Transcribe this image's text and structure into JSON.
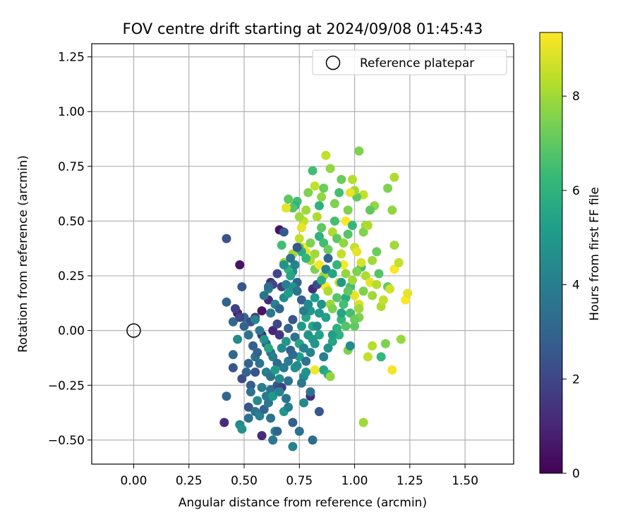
{
  "chart_data": {
    "type": "scatter",
    "title": "FOV centre drift starting at 2024/09/08 01:45:43",
    "xlabel": "Angular distance from reference (arcmin)",
    "ylabel": "Rotation from reference (arcmin)",
    "xlim": [
      -0.19,
      1.72
    ],
    "ylim": [
      -0.61,
      1.31
    ],
    "x_ticks": [
      0.0,
      0.25,
      0.5,
      0.75,
      1.0,
      1.25,
      1.5
    ],
    "x_tick_labels": [
      "0.00",
      "0.25",
      "0.50",
      "0.75",
      "1.00",
      "1.25",
      "1.50"
    ],
    "y_ticks": [
      -0.5,
      -0.25,
      0.0,
      0.25,
      0.5,
      0.75,
      1.0,
      1.25
    ],
    "y_tick_labels": [
      "−0.50",
      "−0.25",
      "0.00",
      "0.25",
      "0.50",
      "0.75",
      "1.00",
      "1.25"
    ],
    "grid": true,
    "legend": {
      "placement": "upper right",
      "entries": [
        "Reference platepar"
      ]
    },
    "reference_point": {
      "name": "Reference platepar",
      "x": 0.0,
      "y": 0.0
    },
    "colorbar": {
      "label": "Hours from first FF file",
      "colormap": "viridis",
      "range": [
        0,
        9.35
      ],
      "ticks": [
        0,
        2,
        4,
        6,
        8
      ],
      "tick_labels": [
        "0",
        "2",
        "4",
        "6",
        "8"
      ]
    },
    "colormap_stops": [
      "#440154",
      "#482878",
      "#3e4989",
      "#31688e",
      "#26828e",
      "#1f9e89",
      "#35b779",
      "#6ece58",
      "#b5de2b",
      "#fde725"
    ],
    "points": [
      [
        0.42,
        0.42,
        2.4
      ],
      [
        0.48,
        0.3,
        0.5
      ],
      [
        0.49,
        0.2,
        2.5
      ],
      [
        0.42,
        0.13,
        3.0
      ],
      [
        0.45,
        0.04,
        3.1
      ],
      [
        0.47,
        0.08,
        0.8
      ],
      [
        0.5,
        0.06,
        3.2
      ],
      [
        0.53,
        0.04,
        2.2
      ],
      [
        0.55,
        0.06,
        1.5
      ],
      [
        0.58,
        0.09,
        0.5
      ],
      [
        0.61,
        0.14,
        1.0
      ],
      [
        0.62,
        0.22,
        1.2
      ],
      [
        0.63,
        0.21,
        2.0
      ],
      [
        0.61,
        0.19,
        4.5
      ],
      [
        0.66,
        0.46,
        0.5
      ],
      [
        0.68,
        0.45,
        2.6
      ],
      [
        0.67,
        0.2,
        1.8
      ],
      [
        0.69,
        0.21,
        4.0
      ],
      [
        0.72,
        0.27,
        4.5
      ],
      [
        0.74,
        0.22,
        3.0
      ],
      [
        0.63,
        0.0,
        1.0
      ],
      [
        0.65,
        0.03,
        2.0
      ],
      [
        0.66,
        -0.02,
        1.5
      ],
      [
        0.7,
        0.01,
        3.0
      ],
      [
        0.72,
        0.05,
        2.5
      ],
      [
        0.58,
        -0.02,
        1.2
      ],
      [
        0.6,
        -0.06,
        2.8
      ],
      [
        0.62,
        -0.1,
        3.3
      ],
      [
        0.55,
        -0.12,
        3.5
      ],
      [
        0.52,
        -0.15,
        3.0
      ],
      [
        0.49,
        -0.22,
        2.2
      ],
      [
        0.51,
        -0.19,
        3.0
      ],
      [
        0.45,
        -0.11,
        3.2
      ],
      [
        0.45,
        -0.17,
        2.5
      ],
      [
        0.47,
        -0.04,
        4.5
      ],
      [
        0.55,
        -0.19,
        2.5
      ],
      [
        0.57,
        -0.15,
        3.5
      ],
      [
        0.53,
        -0.25,
        2.8
      ],
      [
        0.58,
        -0.26,
        4.0
      ],
      [
        0.6,
        -0.3,
        3.8
      ],
      [
        0.62,
        -0.27,
        3.5
      ],
      [
        0.65,
        -0.25,
        2.5
      ],
      [
        0.67,
        -0.26,
        1.8
      ],
      [
        0.7,
        -0.23,
        3.5
      ],
      [
        0.42,
        -0.3,
        3.0
      ],
      [
        0.41,
        -0.42,
        1.2
      ],
      [
        0.48,
        -0.43,
        4.5
      ],
      [
        0.49,
        -0.45,
        4.8
      ],
      [
        0.52,
        -0.35,
        2.5
      ],
      [
        0.52,
        -0.4,
        3.5
      ],
      [
        0.55,
        -0.37,
        3.5
      ],
      [
        0.57,
        -0.39,
        4.2
      ],
      [
        0.58,
        -0.48,
        1.2
      ],
      [
        0.62,
        -0.4,
        3.5
      ],
      [
        0.63,
        -0.5,
        3.8
      ],
      [
        0.64,
        -0.46,
        4.5
      ],
      [
        0.65,
        -0.46,
        3.0
      ],
      [
        0.68,
        -0.37,
        5.0
      ],
      [
        0.7,
        -0.35,
        4.0
      ],
      [
        0.72,
        -0.53,
        4.2
      ],
      [
        0.75,
        -0.46,
        3.5
      ],
      [
        0.77,
        -0.33,
        4.5
      ],
      [
        0.81,
        -0.5,
        3.3
      ],
      [
        0.84,
        -0.37,
        2.5
      ],
      [
        0.8,
        -0.3,
        1.2
      ],
      [
        0.8,
        -0.28,
        3.5
      ],
      [
        0.77,
        -0.21,
        4.5
      ],
      [
        0.73,
        -0.17,
        4.8
      ],
      [
        0.75,
        -0.12,
        5.2
      ],
      [
        0.78,
        -0.14,
        3.5
      ],
      [
        0.8,
        -0.1,
        4.2
      ],
      [
        0.82,
        -0.06,
        5.0
      ],
      [
        0.84,
        -0.02,
        5.3
      ],
      [
        0.86,
        -0.18,
        5.5
      ],
      [
        0.88,
        -0.2,
        5.8
      ],
      [
        0.89,
        -0.21,
        7.8
      ],
      [
        0.82,
        -0.18,
        9.2
      ],
      [
        0.76,
        0.02,
        5.0
      ],
      [
        0.78,
        0.06,
        5.5
      ],
      [
        0.8,
        0.09,
        5.0
      ],
      [
        0.82,
        0.15,
        5.2
      ],
      [
        0.85,
        0.12,
        4.8
      ],
      [
        0.87,
        0.06,
        5.3
      ],
      [
        0.9,
        -0.05,
        5.5
      ],
      [
        0.93,
        -0.02,
        6.0
      ],
      [
        0.94,
        0.05,
        6.2
      ],
      [
        0.96,
        0.02,
        6.8
      ],
      [
        0.97,
        -0.09,
        7.5
      ],
      [
        0.98,
        -0.07,
        4.5
      ],
      [
        1.0,
        0.02,
        7.0
      ],
      [
        1.02,
        0.06,
        7.5
      ],
      [
        1.04,
        -0.42,
        8.0
      ],
      [
        1.06,
        -0.12,
        8.5
      ],
      [
        1.08,
        -0.07,
        8.3
      ],
      [
        1.12,
        -0.12,
        6.2
      ],
      [
        1.14,
        -0.06,
        7.5
      ],
      [
        1.17,
        -0.18,
        9.2
      ],
      [
        1.21,
        -0.04,
        7.9
      ],
      [
        0.72,
        0.35,
        8.0
      ],
      [
        0.75,
        0.42,
        8.5
      ],
      [
        0.77,
        0.38,
        9.3
      ],
      [
        0.78,
        0.36,
        9.0
      ],
      [
        0.8,
        0.32,
        8.2
      ],
      [
        0.82,
        0.28,
        7.5
      ],
      [
        0.84,
        0.3,
        9.2
      ],
      [
        0.86,
        0.25,
        8.0
      ],
      [
        0.87,
        0.2,
        9.3
      ],
      [
        0.88,
        0.18,
        8.2
      ],
      [
        0.89,
        0.12,
        8.0
      ],
      [
        0.9,
        0.1,
        7.5
      ],
      [
        0.92,
        0.15,
        6.8
      ],
      [
        0.93,
        0.22,
        8.5
      ],
      [
        0.95,
        0.3,
        9.3
      ],
      [
        0.96,
        0.26,
        7.8
      ],
      [
        0.98,
        0.2,
        6.5
      ],
      [
        1.0,
        0.16,
        9.0
      ],
      [
        1.02,
        0.12,
        8.8
      ],
      [
        1.04,
        0.18,
        7.5
      ],
      [
        1.05,
        0.25,
        8.2
      ],
      [
        1.07,
        0.22,
        9.0
      ],
      [
        1.08,
        0.16,
        8.0
      ],
      [
        1.1,
        0.21,
        8.3
      ],
      [
        1.11,
        0.26,
        6.8
      ],
      [
        1.12,
        0.11,
        8.2
      ],
      [
        1.13,
        0.14,
        8.5
      ],
      [
        1.15,
        0.2,
        7.0
      ],
      [
        1.16,
        0.19,
        8.7
      ],
      [
        1.18,
        0.28,
        9.3
      ],
      [
        1.18,
        0.39,
        8.0
      ],
      [
        1.2,
        0.31,
        8.5
      ],
      [
        1.23,
        0.14,
        9.3
      ],
      [
        1.24,
        0.17,
        9.0
      ],
      [
        1.15,
        0.65,
        7.5
      ],
      [
        1.17,
        0.55,
        7.8
      ],
      [
        1.18,
        0.7,
        8.2
      ],
      [
        1.09,
        0.57,
        7.8
      ],
      [
        1.07,
        0.55,
        7.0
      ],
      [
        1.05,
        0.48,
        8.0
      ],
      [
        1.04,
        0.62,
        8.5
      ],
      [
        1.02,
        0.82,
        7.5
      ],
      [
        1.01,
        0.61,
        7.0
      ],
      [
        1.0,
        0.64,
        8.0
      ],
      [
        0.99,
        0.69,
        8.3
      ],
      [
        0.98,
        0.63,
        9.0
      ],
      [
        0.97,
        0.55,
        7.5
      ],
      [
        0.96,
        0.5,
        9.3
      ],
      [
        0.94,
        0.69,
        7.2
      ],
      [
        0.93,
        0.63,
        6.5
      ],
      [
        0.91,
        0.58,
        7.5
      ],
      [
        0.89,
        0.74,
        7.8
      ],
      [
        0.87,
        0.8,
        8.5
      ],
      [
        0.86,
        0.65,
        7.2
      ],
      [
        0.85,
        0.61,
        7.8
      ],
      [
        0.84,
        0.57,
        6.0
      ],
      [
        0.83,
        0.52,
        8.2
      ],
      [
        0.82,
        0.66,
        8.5
      ],
      [
        0.81,
        0.73,
        6.5
      ],
      [
        0.79,
        0.63,
        7.5
      ],
      [
        0.78,
        0.55,
        8.0
      ],
      [
        0.77,
        0.5,
        8.5
      ],
      [
        0.76,
        0.47,
        9.0
      ],
      [
        0.75,
        0.52,
        8.0
      ],
      [
        0.74,
        0.59,
        6.5
      ],
      [
        0.73,
        0.57,
        6.0
      ],
      [
        0.72,
        0.56,
        6.8
      ],
      [
        0.7,
        0.6,
        7.0
      ],
      [
        0.69,
        0.56,
        9.0
      ],
      [
        0.68,
        0.31,
        8.0
      ],
      [
        0.67,
        0.39,
        6.5
      ],
      [
        0.7,
        0.28,
        6.0
      ],
      [
        0.71,
        0.25,
        5.5
      ],
      [
        0.73,
        0.3,
        4.2
      ],
      [
        0.75,
        0.38,
        7.0
      ],
      [
        0.76,
        0.36,
        5.8
      ],
      [
        0.78,
        0.33,
        6.2
      ],
      [
        0.8,
        0.4,
        7.5
      ],
      [
        0.82,
        0.35,
        8.0
      ],
      [
        0.84,
        0.43,
        6.0
      ],
      [
        0.85,
        0.47,
        7.0
      ],
      [
        0.86,
        0.4,
        6.5
      ],
      [
        0.88,
        0.37,
        7.2
      ],
      [
        0.9,
        0.45,
        8.2
      ],
      [
        0.91,
        0.5,
        6.5
      ],
      [
        0.92,
        0.42,
        7.0
      ],
      [
        0.94,
        0.35,
        8.5
      ],
      [
        0.95,
        0.4,
        7.8
      ],
      [
        0.97,
        0.44,
        6.8
      ],
      [
        0.99,
        0.48,
        6.2
      ],
      [
        1.0,
        0.38,
        8.5
      ],
      [
        1.01,
        0.36,
        9.0
      ],
      [
        1.03,
        0.29,
        6.5
      ],
      [
        1.04,
        0.45,
        7.5
      ],
      [
        1.06,
        0.48,
        8.2
      ],
      [
        1.08,
        0.32,
        8.0
      ],
      [
        1.1,
        0.36,
        7.2
      ],
      [
        0.62,
        0.08,
        3.8
      ],
      [
        0.64,
        0.12,
        4.2
      ],
      [
        0.66,
        0.1,
        3.0
      ],
      [
        0.68,
        0.15,
        4.5
      ],
      [
        0.7,
        0.17,
        5.2
      ],
      [
        0.72,
        0.2,
        4.8
      ],
      [
        0.74,
        0.18,
        3.5
      ],
      [
        0.76,
        0.14,
        2.8
      ],
      [
        0.77,
        0.09,
        4.0
      ],
      [
        0.79,
        0.12,
        4.5
      ],
      [
        0.81,
        0.19,
        1.2
      ],
      [
        0.83,
        0.21,
        2.2
      ],
      [
        0.85,
        0.23,
        5.8
      ],
      [
        0.87,
        0.28,
        4.2
      ],
      [
        0.88,
        0.33,
        3.0
      ],
      [
        0.9,
        0.26,
        5.5
      ],
      [
        0.92,
        0.3,
        6.2
      ],
      [
        0.94,
        0.22,
        5.0
      ],
      [
        0.96,
        0.15,
        5.8
      ],
      [
        0.98,
        0.08,
        6.5
      ],
      [
        1.0,
        0.05,
        7.2
      ],
      [
        1.02,
        0.1,
        8.0
      ],
      [
        0.55,
        0.05,
        4.2
      ],
      [
        0.57,
        0.0,
        3.8
      ],
      [
        0.59,
        -0.04,
        4.8
      ],
      [
        0.61,
        -0.08,
        5.5
      ],
      [
        0.63,
        -0.12,
        4.0
      ],
      [
        0.65,
        -0.15,
        3.2
      ],
      [
        0.67,
        -0.08,
        4.5
      ],
      [
        0.69,
        -0.05,
        5.0
      ],
      [
        0.71,
        -0.09,
        2.8
      ],
      [
        0.73,
        -0.03,
        3.5
      ],
      [
        0.75,
        -0.06,
        5.5
      ],
      [
        0.77,
        -0.08,
        4.2
      ],
      [
        0.79,
        -0.02,
        4.8
      ],
      [
        0.81,
        0.02,
        5.5
      ],
      [
        0.6,
        -0.19,
        4.0
      ],
      [
        0.62,
        -0.21,
        3.6
      ],
      [
        0.64,
        -0.18,
        5.0
      ],
      [
        0.66,
        -0.22,
        4.5
      ],
      [
        0.68,
        -0.17,
        3.8
      ],
      [
        0.7,
        -0.14,
        4.0
      ],
      [
        0.72,
        -0.11,
        3.2
      ],
      [
        0.74,
        -0.16,
        4.5
      ],
      [
        0.76,
        -0.24,
        3.8
      ],
      [
        0.78,
        -0.19,
        4.8
      ],
      [
        0.56,
        -0.1,
        3.0
      ],
      [
        0.54,
        -0.07,
        2.8
      ],
      [
        0.52,
        -0.02,
        3.5
      ],
      [
        0.5,
        0.02,
        3.0
      ],
      [
        0.48,
        0.06,
        2.0
      ],
      [
        0.46,
        0.1,
        1.8
      ],
      [
        0.59,
        0.16,
        3.6
      ],
      [
        0.61,
        0.2,
        3.3
      ],
      [
        0.65,
        0.26,
        2.0
      ],
      [
        0.68,
        0.3,
        4.8
      ],
      [
        0.71,
        0.33,
        3.5
      ],
      [
        0.74,
        0.38,
        2.5
      ],
      [
        0.53,
        -0.28,
        3.5
      ],
      [
        0.56,
        -0.32,
        4.5
      ],
      [
        0.59,
        -0.36,
        3.0
      ],
      [
        0.61,
        -0.33,
        3.8
      ],
      [
        0.63,
        -0.3,
        5.0
      ],
      [
        0.66,
        -0.28,
        4.2
      ],
      [
        0.69,
        -0.31,
        3.5
      ],
      [
        0.72,
        -0.42,
        2.8
      ],
      [
        0.86,
        -0.12,
        4.0
      ],
      [
        0.88,
        -0.08,
        4.8
      ],
      [
        0.9,
        -0.02,
        5.2
      ],
      [
        0.92,
        0.01,
        6.0
      ],
      [
        0.94,
        0.08,
        5.5
      ],
      [
        0.95,
        0.12,
        6.5
      ],
      [
        0.97,
        0.18,
        7.0
      ],
      [
        0.99,
        0.23,
        8.0
      ],
      [
        1.01,
        0.27,
        7.5
      ],
      [
        1.03,
        0.31,
        8.8
      ],
      [
        0.84,
        0.08,
        5.0
      ],
      [
        0.83,
        0.02,
        4.5
      ],
      [
        0.81,
        -0.04,
        5.0
      ]
    ]
  }
}
